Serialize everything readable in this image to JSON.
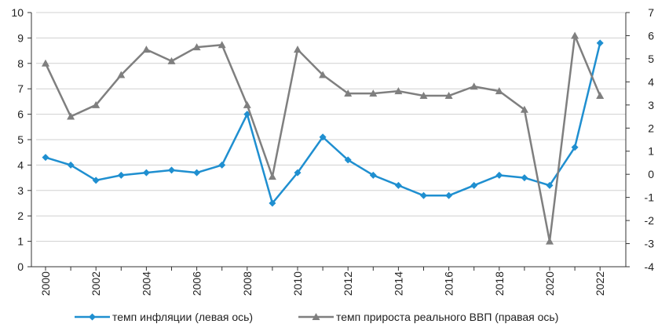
{
  "chart_data": {
    "type": "line",
    "x": [
      2000,
      2001,
      2002,
      2003,
      2004,
      2005,
      2006,
      2007,
      2008,
      2009,
      2010,
      2011,
      2012,
      2013,
      2014,
      2015,
      2016,
      2017,
      2018,
      2019,
      2020,
      2021,
      2022
    ],
    "x_tick_labels": [
      "2000",
      "2002",
      "2004",
      "2006",
      "2008",
      "2010",
      "2012",
      "2014",
      "2016",
      "2018",
      "2020",
      "2022"
    ],
    "y_left": {
      "range": [
        0,
        10
      ],
      "ticks": [
        "0",
        "1",
        "2",
        "3",
        "4",
        "5",
        "6",
        "7",
        "8",
        "9",
        "10"
      ]
    },
    "y_right": {
      "range": [
        -4,
        7
      ],
      "ticks": [
        "-4",
        "-3",
        "-2",
        "-1",
        "0",
        "1",
        "2",
        "3",
        "4",
        "5",
        "6",
        "7"
      ]
    },
    "grid": "horizontal",
    "legend_position": "bottom",
    "series": [
      {
        "name": "темп инфляции (левая ось)",
        "axis": "left",
        "color": "#1f8fd0",
        "marker": "diamond",
        "values": [
          4.3,
          4.0,
          3.4,
          3.6,
          3.7,
          3.8,
          3.7,
          4.0,
          6.0,
          2.5,
          3.7,
          5.1,
          4.2,
          3.6,
          3.2,
          2.8,
          2.8,
          3.2,
          3.6,
          3.5,
          3.2,
          4.7,
          8.8
        ]
      },
      {
        "name": "темп прироста реального ВВП (правая ось)",
        "axis": "right",
        "color": "#7f7f7f",
        "marker": "triangle",
        "values": [
          4.8,
          2.5,
          3.0,
          4.3,
          5.4,
          4.9,
          5.5,
          5.6,
          3.0,
          -0.1,
          5.4,
          4.3,
          3.5,
          3.5,
          3.6,
          3.4,
          3.4,
          3.8,
          3.6,
          2.8,
          -2.9,
          6.0,
          3.4
        ]
      }
    ]
  }
}
